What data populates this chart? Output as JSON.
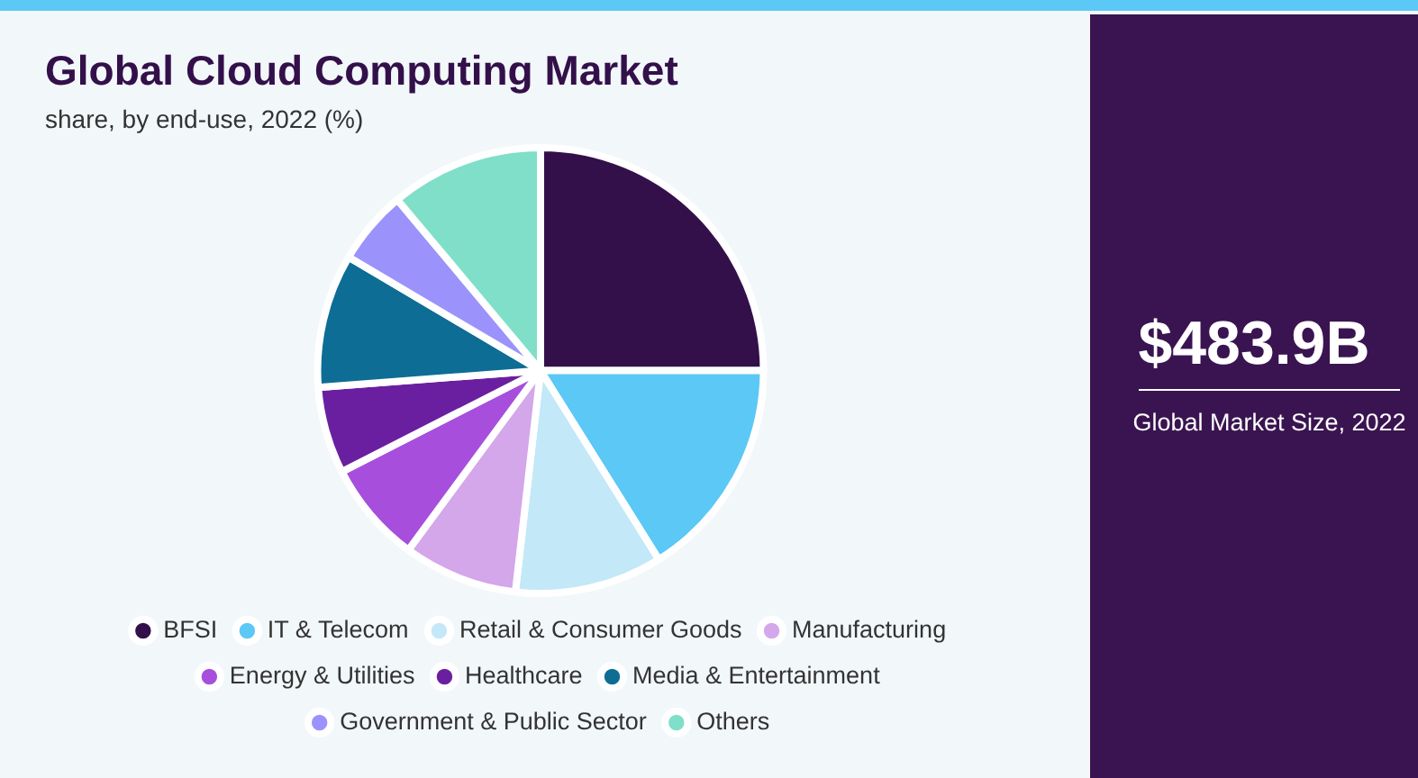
{
  "chart_data": {
    "type": "pie",
    "title": "Global Cloud Computing Market",
    "subtitle": "share, by end-use, 2022 (%)",
    "categories": [
      "BFSI",
      "IT & Telecom",
      "Retail & Consumer Goods",
      "Manufacturing",
      "Energy & Utilities",
      "Healthcare",
      "Media & Entertainment",
      "Government & Public Sector",
      "Others"
    ],
    "values": [
      25,
      16.1,
      10.7,
      8.3,
      7.4,
      6.3,
      9.7,
      5.4,
      11.1
    ],
    "colors": [
      "#33104a",
      "#5bc8f5",
      "#c3e8f8",
      "#d4a6ea",
      "#a74fdc",
      "#6a1fa0",
      "#0e6d94",
      "#9b93fb",
      "#7fdfc8"
    ],
    "legend": "bottom",
    "annotations": [
      "$483.9B",
      "Global Market Size, 2022"
    ]
  }
}
